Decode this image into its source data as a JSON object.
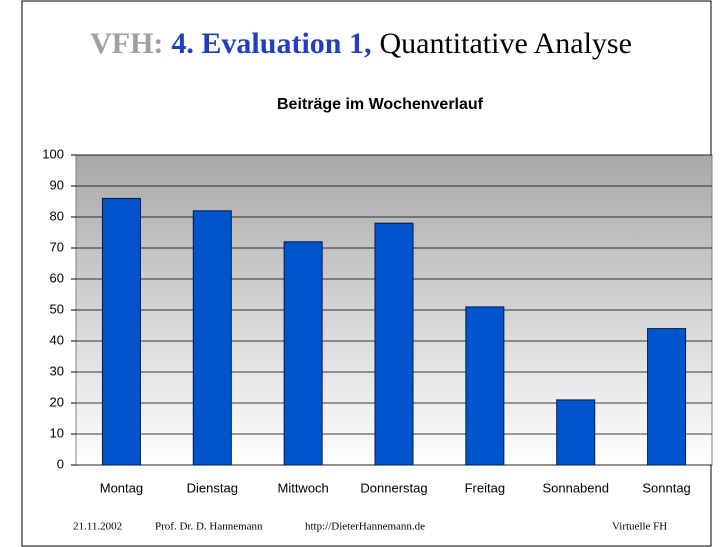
{
  "header": {
    "prefix": "VFH:",
    "highlight": "4. Evaluation 1,",
    "rest": "Quantitative Analyse"
  },
  "chart_data": {
    "type": "bar",
    "title": "Beiträge im Wochenverlauf",
    "categories": [
      "Montag",
      "Dienstag",
      "Mittwoch",
      "Donnerstag",
      "Freitag",
      "Sonnabend",
      "Sonntag"
    ],
    "values": [
      86,
      82,
      72,
      78,
      51,
      21,
      44
    ],
    "color": "#0055cc",
    "ylim": [
      0,
      100
    ],
    "yticks": [
      0,
      10,
      20,
      30,
      40,
      50,
      60,
      70,
      80,
      90,
      100
    ],
    "grid": true
  },
  "footer": {
    "date": "21.11.2002",
    "author": "Prof. Dr. D. Hannemann",
    "url": "http://DieterHannemann.de",
    "org": "Virtuelle FH"
  }
}
